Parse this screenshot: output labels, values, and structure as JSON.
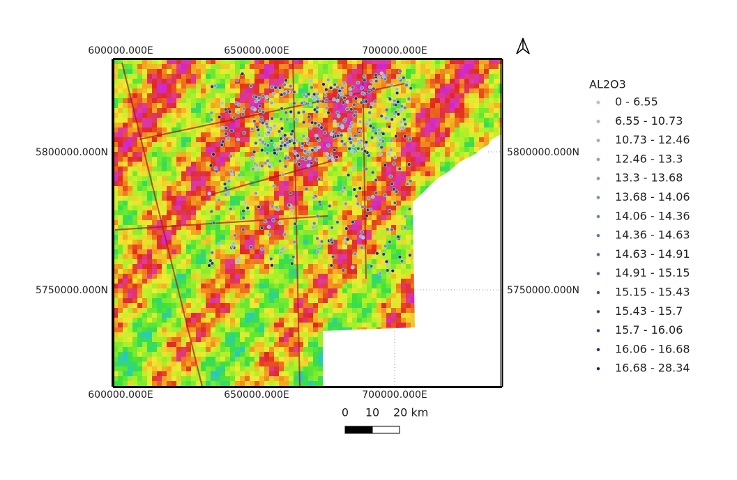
{
  "map": {
    "grid_labels": {
      "top": [
        "600000.000E",
        "650000.000E",
        "700000.000E"
      ],
      "bottom": [
        "600000.000E",
        "650000.000E",
        "700000.000E"
      ],
      "left": [
        "5800000.000N",
        "5750000.000N"
      ],
      "right": [
        "5800000.000N",
        "5750000.000N"
      ]
    },
    "legend": {
      "title": "AL2O3",
      "classes": [
        "0 - 6.55",
        "6.55 - 10.73",
        "10.73 - 12.46",
        "12.46 - 13.3",
        "13.3 - 13.68",
        "13.68 - 14.06",
        "14.06 - 14.36",
        "14.36 - 14.63",
        "14.63 - 14.91",
        "14.91 - 15.15",
        "15.15 - 15.43",
        "15.43 - 15.7",
        "15.7 - 16.06",
        "16.06 - 16.68",
        "16.68 - 28.34"
      ]
    },
    "scale_bar": {
      "labels": [
        "0",
        "10",
        "20 km"
      ]
    }
  }
}
